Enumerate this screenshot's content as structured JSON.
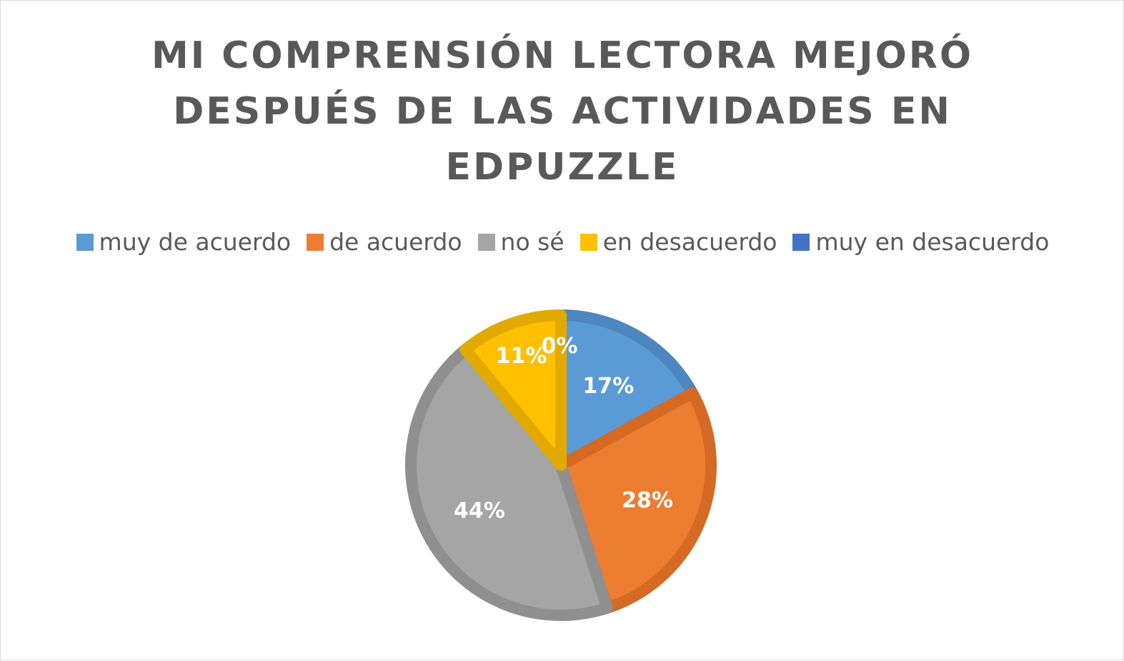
{
  "chart_data": {
    "type": "pie",
    "title": "MI COMPRENSIÓN LECTORA MEJORÓ DESPUÉS DE LAS ACTIVIDADES EN EDPUZZLE",
    "categories": [
      "muy de acuerdo",
      "de acuerdo",
      "no sé",
      "en desacuerdo",
      "muy en desacuerdo"
    ],
    "values": [
      17,
      28,
      44,
      11,
      0
    ],
    "labels": [
      "17%",
      "28%",
      "44%",
      "11%",
      "0%"
    ],
    "colors": [
      "#5b9bd5",
      "#ed7d31",
      "#a5a5a5",
      "#ffc000",
      "#4472c4"
    ],
    "border_colors": [
      "#4e86bf",
      "#d56a24",
      "#8f8f8f",
      "#e2aa00",
      "#3a63ad"
    ],
    "legend_position": "top"
  }
}
